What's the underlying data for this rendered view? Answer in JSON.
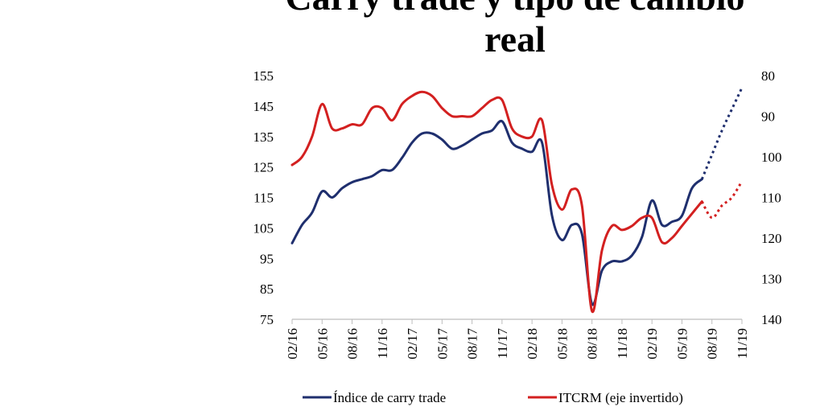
{
  "title": {
    "line1": "Carry trade y tipo de cambio",
    "line2": "real"
  },
  "chart_data": {
    "type": "line",
    "x": [
      "02/16",
      "03/16",
      "04/16",
      "05/16",
      "06/16",
      "07/16",
      "08/16",
      "09/16",
      "10/16",
      "11/16",
      "12/16",
      "01/17",
      "02/17",
      "03/17",
      "04/17",
      "05/17",
      "06/17",
      "07/17",
      "08/17",
      "09/17",
      "10/17",
      "11/17",
      "12/17",
      "01/18",
      "02/18",
      "03/18",
      "04/18",
      "05/18",
      "06/18",
      "07/18",
      "08/18",
      "09/18",
      "10/18",
      "11/18",
      "12/18",
      "01/19",
      "02/19",
      "03/19",
      "04/19",
      "05/19",
      "06/19",
      "07/19",
      "08/19",
      "09/19",
      "10/19",
      "11/19"
    ],
    "x_tick_labels": [
      "02/16",
      "05/16",
      "08/16",
      "11/16",
      "02/17",
      "05/17",
      "08/17",
      "11/17",
      "02/18",
      "05/18",
      "08/18",
      "11/18",
      "02/19",
      "05/19",
      "08/19",
      "11/19"
    ],
    "y_left": {
      "ticks": [
        75,
        85,
        95,
        105,
        115,
        125,
        135,
        145,
        155
      ],
      "range": [
        75,
        155
      ]
    },
    "y_right": {
      "ticks": [
        80,
        90,
        100,
        110,
        120,
        130,
        140
      ],
      "range": [
        140,
        80
      ],
      "inverted": true
    },
    "series": [
      {
        "name": "Índice de carry trade",
        "axis": "left",
        "color": "#1f2f6e",
        "values": [
          100,
          106,
          110,
          117,
          115,
          118,
          120,
          121,
          122,
          124,
          124,
          128,
          133,
          136,
          136,
          134,
          131,
          132,
          134,
          136,
          137,
          140,
          133,
          131,
          130,
          133,
          109,
          101,
          106,
          103,
          80,
          91,
          94,
          94,
          96,
          102,
          114,
          106,
          107,
          109,
          118,
          121,
          129,
          137,
          144,
          151
        ]
      },
      {
        "name": "ITCRM (eje invertido)",
        "axis": "right",
        "color": "#d32020",
        "values": [
          102,
          100,
          95,
          87,
          93,
          93,
          92,
          92,
          88,
          88,
          91,
          87,
          85,
          84,
          85,
          88,
          90,
          90,
          90,
          88,
          86,
          86,
          93,
          95,
          95,
          91,
          107,
          113,
          108,
          112,
          138,
          123,
          117,
          118,
          117,
          115,
          115,
          121,
          120,
          117,
          114,
          111,
          115,
          112,
          110,
          106
        ]
      }
    ],
    "projected_from_index": 41,
    "grid": false,
    "legend_position": "bottom"
  }
}
